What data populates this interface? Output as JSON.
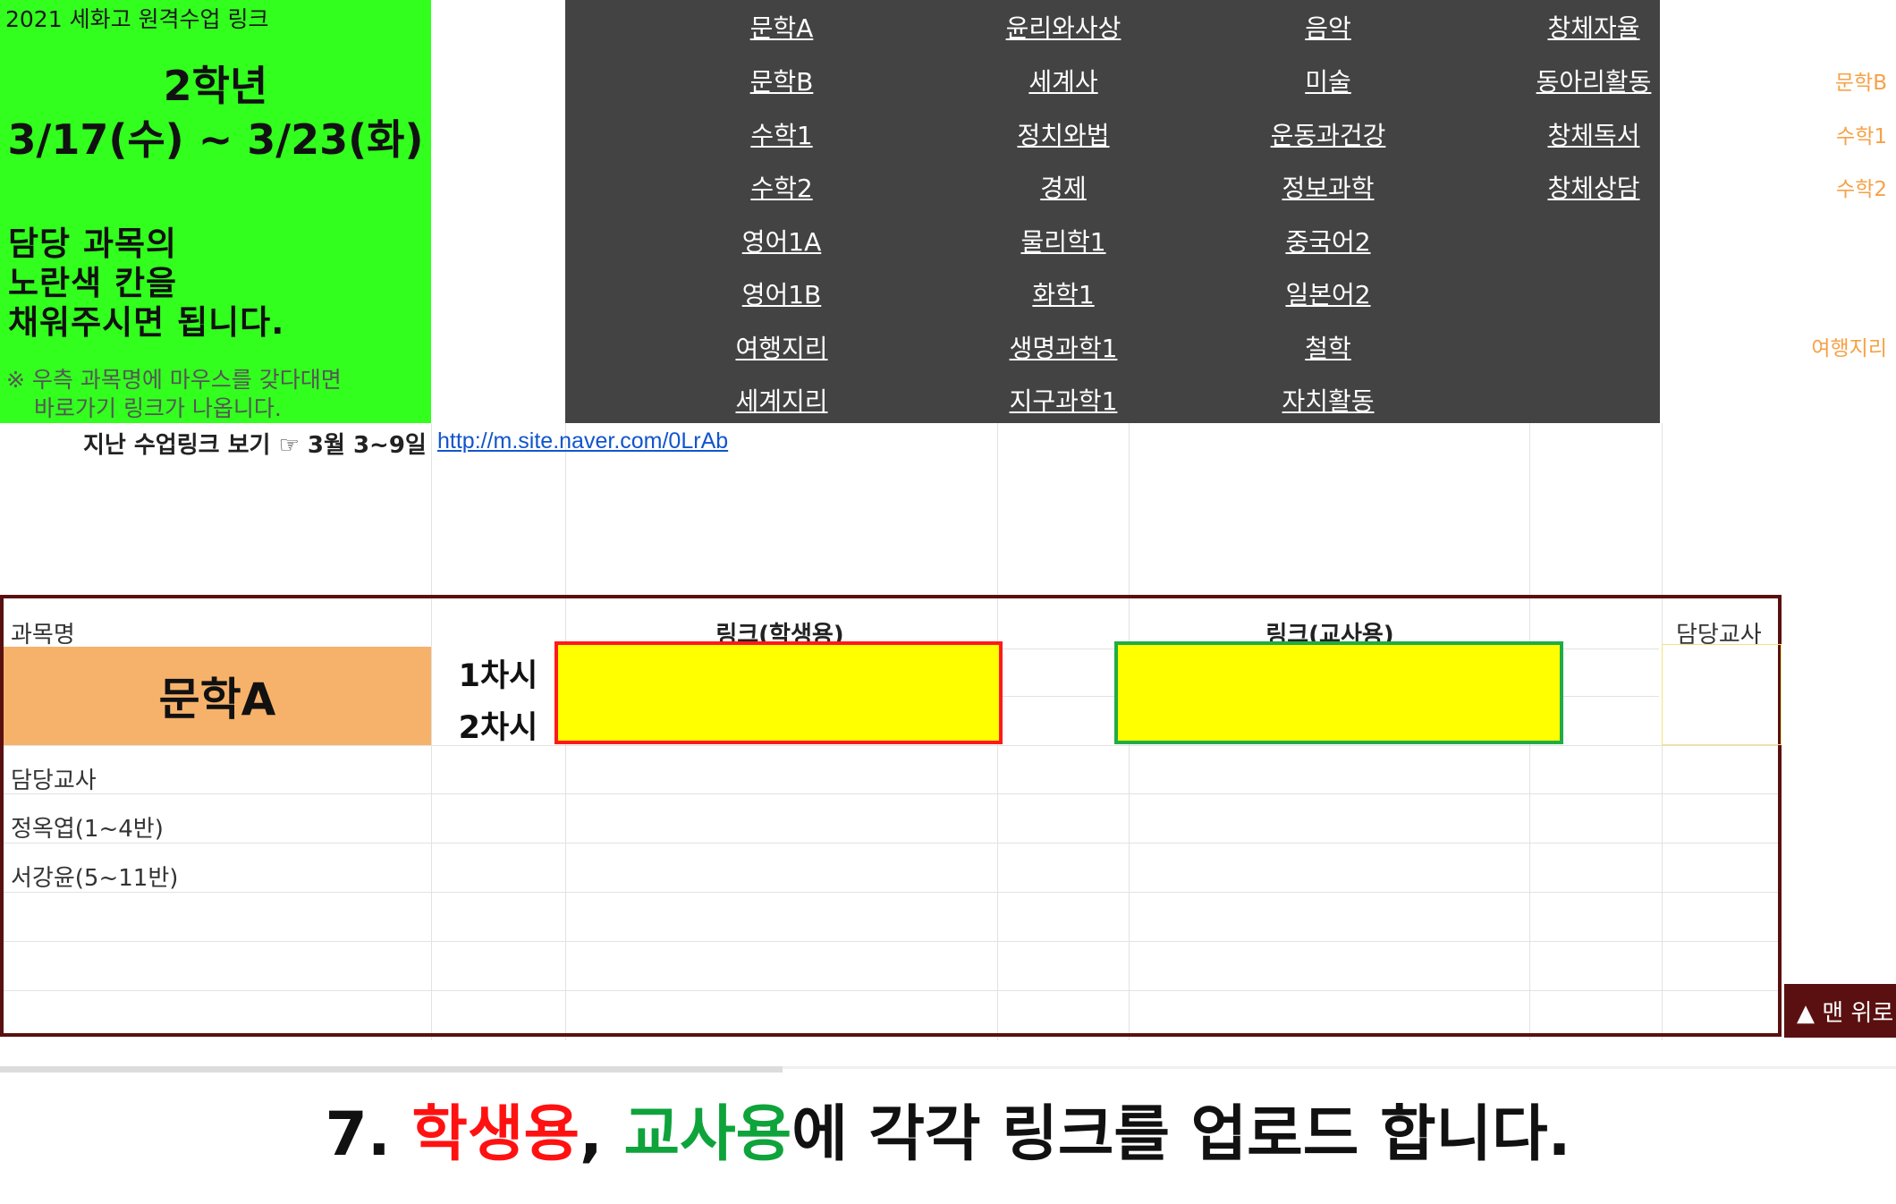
{
  "info_panel": {
    "title": "2021 세화고 원격수업 링크",
    "grade": "2학년",
    "dates": "3/17(수) ~ 3/23(화)",
    "instruction_lines": [
      "담당 과목의",
      "노란색 칸을",
      "채워주시면 됩니다."
    ],
    "note_lines": [
      "※ 우측 과목명에 마우스를 갖다대면",
      "바로가기 링크가 나옵니다."
    ]
  },
  "menu": {
    "columns": [
      [
        "문학A",
        "문학B",
        "수학1",
        "수학2",
        "영어1A",
        "영어1B",
        "여행지리",
        "세계지리"
      ],
      [
        "윤리와사상",
        "세계사",
        "정치와법",
        "경제",
        "물리학1",
        "화학1",
        "생명과학1",
        "지구과학1"
      ],
      [
        "음악",
        "미술",
        "운동과건강",
        "정보과학",
        "중국어2",
        "일본어2",
        "철학",
        "자치활동"
      ],
      [
        "창체자율",
        "동아리활동",
        "창체독서",
        "창체상담"
      ]
    ]
  },
  "side_links": [
    "문학B",
    "수학1",
    "수학2",
    "여행지리"
  ],
  "past_links": {
    "label": "지난 수업링크 보기 ☞ 3월 3~9일",
    "url": "http://m.site.naver.com/0LrAb"
  },
  "table": {
    "subject_header": "과목명",
    "student_link_header": "링크(학생용)",
    "teacher_link_header": "링크(교사용)",
    "teacher_header": "담당교사",
    "subject_name": "문학A",
    "periods": [
      "1차시",
      "2차시"
    ],
    "teacher_label": "담당교사",
    "teachers": [
      "정옥엽(1~4반)",
      "서강윤(5~11반)"
    ]
  },
  "back_to_top": "▲ 맨 위로",
  "caption": {
    "prefix": "7. ",
    "student": "학생용",
    "comma": ", ",
    "teacher": "교사용",
    "suffix": "에 각각 링크를 업로드 합니다."
  },
  "colors": {
    "info_panel_bg": "#32ff1e",
    "menu_bg": "#434343",
    "subject_bg": "#f6b26b",
    "input_fill": "#ffff00",
    "student_border": "#ff1a1a",
    "teacher_border": "#1fad45",
    "table_border": "#5a1010",
    "side_link": "#f6a147"
  }
}
